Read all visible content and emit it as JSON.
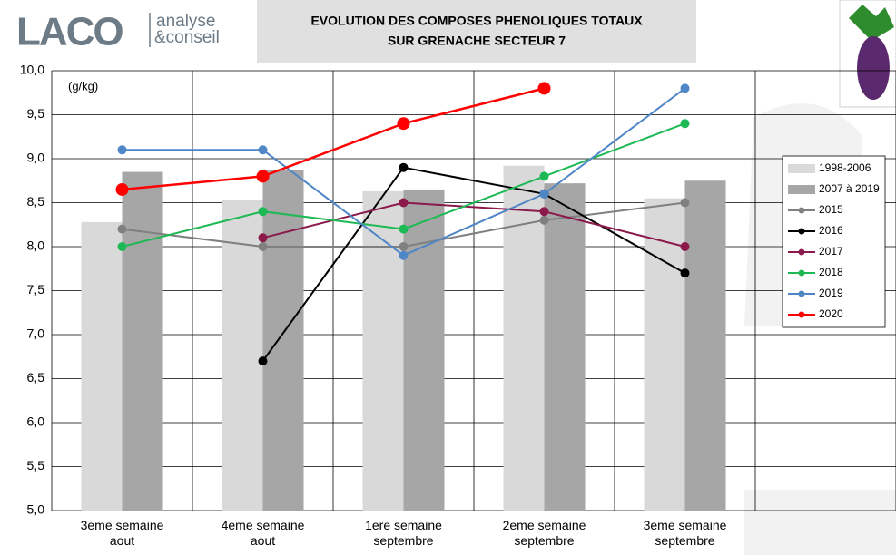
{
  "logo": {
    "name": "LACO",
    "tagline": [
      "analyse",
      "&conseil"
    ]
  },
  "chart_data": {
    "type": "combo",
    "title": [
      "EVOLUTION DES COMPOSES PHENOLIQUES TOTAUX",
      "SUR GRENACHE SECTEUR 7"
    ],
    "y_unit": "(g/kg)",
    "categories": [
      "3eme semaine aout",
      "4eme semaine aout",
      "1ere semaine septembre",
      "2eme semaine septembre",
      "3eme semaine septembre",
      null
    ],
    "ylim": [
      5,
      10
    ],
    "yticks": [
      {
        "value": 5,
        "label": "5,0"
      },
      {
        "value": 5.5,
        "label": "5,5"
      },
      {
        "value": 6,
        "label": "6,0"
      },
      {
        "value": 6.5,
        "label": "6,5"
      },
      {
        "value": 7,
        "label": "7,0"
      },
      {
        "value": 7.5,
        "label": "7,5"
      },
      {
        "value": 8,
        "label": "8,0"
      },
      {
        "value": 8.5,
        "label": "8,5"
      },
      {
        "value": 9,
        "label": "9,0"
      },
      {
        "value": 9.5,
        "label": "9,5"
      },
      {
        "value": 10,
        "label": "10,0"
      }
    ],
    "grid": true,
    "legend": "right",
    "series": [
      {
        "name": "1998-2006",
        "type": "bar",
        "color": "#d9d9d9",
        "values": [
          8.28,
          8.53,
          8.63,
          8.92,
          8.55,
          null
        ]
      },
      {
        "name": "2007 à 2019",
        "type": "bar",
        "color": "#a6a6a6",
        "values": [
          8.85,
          8.87,
          8.65,
          8.72,
          8.75,
          null
        ]
      },
      {
        "name": "2015",
        "type": "line",
        "color": "#808080",
        "marker_radius": 5,
        "values": [
          8.2,
          8.0,
          8.0,
          8.3,
          8.5,
          null
        ]
      },
      {
        "name": "2016",
        "type": "line",
        "color": "#000000",
        "marker_radius": 5,
        "values": [
          null,
          6.7,
          8.9,
          8.6,
          7.7,
          null
        ]
      },
      {
        "name": "2017",
        "type": "line",
        "color": "#8b1a4a",
        "marker_radius": 5,
        "values": [
          null,
          8.1,
          8.5,
          8.4,
          8.0,
          null
        ]
      },
      {
        "name": "2018",
        "type": "line",
        "color": "#1db954",
        "marker_radius": 5,
        "values": [
          8.0,
          8.4,
          8.2,
          8.8,
          9.4,
          null
        ]
      },
      {
        "name": "2019",
        "type": "line",
        "color": "#4f86c6",
        "marker_radius": 5,
        "values": [
          9.1,
          9.1,
          7.9,
          8.6,
          9.8,
          null
        ]
      },
      {
        "name": "2020",
        "type": "line",
        "color": "#ff0000",
        "marker_radius": 7,
        "values": [
          8.65,
          8.8,
          9.4,
          9.8,
          null,
          null
        ]
      }
    ]
  }
}
